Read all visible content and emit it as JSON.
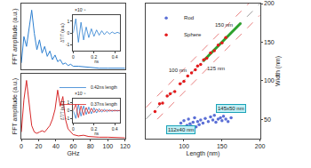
{
  "chart_data": [
    {
      "type": "line",
      "ylabel": "FFT amplitude (a.u.)",
      "tick_labels": false,
      "xlim": [
        0,
        120
      ],
      "ylim": [
        0,
        1
      ],
      "x": [
        0,
        3,
        6,
        9,
        12,
        15,
        18,
        21,
        24,
        27,
        30,
        33,
        36,
        39,
        42,
        45,
        48,
        51,
        54,
        57,
        60,
        66,
        72,
        78,
        84,
        90,
        100,
        110,
        120
      ],
      "series": [
        {
          "color": "#2c7fd0",
          "values": [
            0.1,
            0.5,
            0.35,
            0.6,
            0.9,
            0.55,
            0.3,
            0.45,
            0.25,
            0.35,
            0.2,
            0.28,
            0.15,
            0.22,
            0.12,
            0.15,
            0.08,
            0.1,
            0.06,
            0.08,
            0.05,
            0.05,
            0.04,
            0.03,
            0.03,
            0.02,
            0.02,
            0.02,
            0.02
          ]
        }
      ]
    },
    {
      "type": "line",
      "xlabel": "ns",
      "ylabel": "ΔT/T (a.u.)",
      "xlim": [
        0,
        0.45
      ],
      "xticks": [
        0,
        0.2,
        0.4
      ],
      "ylim": [
        -1.5,
        1.5
      ],
      "yticks": [
        -1,
        0,
        1
      ],
      "annotations": [
        {
          "text": "×10⁻⁵"
        }
      ],
      "x": [
        0,
        0.025,
        0.05,
        0.075,
        0.1,
        0.125,
        0.15,
        0.175,
        0.2,
        0.225,
        0.25,
        0.275,
        0.3,
        0.325,
        0.35,
        0.375,
        0.4,
        0.425,
        0.45
      ],
      "series": [
        {
          "color": "#2c7fd0",
          "values": [
            0,
            1.2,
            -0.8,
            0.9,
            -0.6,
            0.5,
            -0.4,
            0.35,
            -0.3,
            0.25,
            -0.2,
            0.18,
            -0.15,
            0.12,
            -0.1,
            0.08,
            -0.06,
            0.05,
            -0.04
          ]
        }
      ]
    },
    {
      "type": "line",
      "xlabel": "GHz",
      "ylabel": "FFT amplitude (a.u.)",
      "tick_labels": "x",
      "xlim": [
        0,
        120
      ],
      "xticks": [
        0,
        20,
        40,
        60,
        80,
        100,
        120
      ],
      "ylim": [
        0,
        1
      ],
      "x": [
        0,
        3,
        6,
        9,
        12,
        15,
        18,
        21,
        24,
        27,
        30,
        33,
        36,
        39,
        42,
        45,
        48,
        51,
        54,
        57,
        60,
        66,
        72,
        78,
        84,
        90,
        100,
        110,
        120
      ],
      "series": [
        {
          "color": "#d62728",
          "values": [
            0.1,
            0.6,
            0.9,
            0.5,
            0.2,
            0.1,
            0.08,
            0.1,
            0.12,
            0.1,
            0.15,
            0.2,
            0.3,
            0.45,
            0.75,
            0.5,
            0.65,
            0.3,
            0.15,
            0.1,
            0.06,
            0.04,
            0.05,
            0.03,
            0.02,
            0.02,
            0.02,
            0.01,
            0.01
          ]
        }
      ]
    },
    {
      "type": "line",
      "xlabel": "ns",
      "ylabel": "ΔT/T (a.u.)",
      "legend": "upper right",
      "xlim": [
        0,
        0.45
      ],
      "xticks": [
        0,
        0.2,
        0.4
      ],
      "ylim": [
        -1.5,
        1.5
      ],
      "yticks": [
        -1,
        0,
        1
      ],
      "annotations": [
        {
          "text": "×10⁻⁵"
        }
      ],
      "x": [
        0,
        0.025,
        0.05,
        0.075,
        0.1,
        0.125,
        0.15,
        0.175,
        0.2,
        0.225,
        0.25,
        0.275,
        0.3,
        0.325,
        0.35,
        0.375,
        0.4,
        0.425,
        0.45
      ],
      "series": [
        {
          "name": "0.42ns length",
          "color": "#2c7fd0",
          "values": [
            0,
            -1.0,
            0.8,
            -0.7,
            0.6,
            -0.5,
            0.45,
            -0.4,
            0.35,
            -0.3,
            0.25,
            -0.2,
            0.18,
            -0.15,
            0.12,
            -0.1,
            0.08,
            -0.06,
            0.05
          ]
        },
        {
          "name": "0.37ns length",
          "color": "#d62728",
          "values": [
            0,
            0.8,
            -0.9,
            0.6,
            -0.6,
            0.4,
            -0.4,
            0.3,
            -0.25,
            0.2,
            -0.15,
            0.12,
            -0.1,
            0.08,
            -0.06,
            0.05,
            -0.04,
            0.03,
            -0.02
          ]
        }
      ]
    },
    {
      "type": "scatter",
      "xlabel": "Length (nm)",
      "ylabel": "Width (nm)",
      "legend": "upper left",
      "xlim": [
        50,
        200
      ],
      "xticks": [
        100,
        150,
        200
      ],
      "ylim": [
        25,
        200
      ],
      "yticks": [
        50,
        100,
        150,
        200
      ],
      "annotations": [
        {
          "text": "100 nm",
          "x": 92,
          "y": 114
        },
        {
          "text": "125 nm",
          "x": 142,
          "y": 116
        },
        {
          "text": "150 nm",
          "x": 152,
          "y": 172
        },
        {
          "text": "112x40 nm",
          "x": 96,
          "y": 36
        },
        {
          "text": "145x50 nm",
          "x": 162,
          "y": 64
        }
      ],
      "series": [
        {
          "type": "line",
          "line_style": "dashed",
          "color": "#999999",
          "x": [
            50,
            200
          ],
          "values": [
            50,
            200
          ]
        },
        {
          "type": "line",
          "line_style": "dashed",
          "color": "#e88080",
          "x": [
            50,
            185
          ],
          "values": [
            65,
            200
          ]
        },
        {
          "type": "line",
          "line_style": "dashed",
          "color": "#e88080",
          "x": [
            65,
            200
          ],
          "values": [
            50,
            185
          ]
        },
        {
          "type": "line",
          "line_style": "solid",
          "color": "#2ca02c",
          "x": [
            125,
            175
          ],
          "values": [
            125,
            175
          ]
        },
        {
          "name": "Rod",
          "type": "scatter",
          "marker": "circle",
          "color": "#5b6fd6",
          "x": [
            96,
            100,
            104,
            106,
            108,
            110,
            112,
            114,
            116,
            118,
            120,
            122,
            125,
            128,
            132,
            135,
            138,
            140,
            142,
            145,
            148,
            150,
            152,
            155,
            158,
            162
          ],
          "values": [
            45,
            48,
            42,
            50,
            44,
            41,
            46,
            52,
            40,
            47,
            43,
            49,
            45,
            51,
            47,
            53,
            49,
            55,
            46,
            50,
            52,
            48,
            54,
            50,
            47,
            52
          ]
        },
        {
          "name": "Sphere",
          "type": "scatter",
          "marker": "circle",
          "color": "#e41a1c",
          "x": [
            62,
            68,
            72,
            78,
            82,
            88,
            95,
            100,
            105,
            110,
            115,
            118,
            122,
            126,
            130,
            135,
            140,
            145,
            150,
            155
          ],
          "values": [
            60,
            70,
            71,
            80,
            83,
            86,
            96,
            99,
            106,
            110,
            114,
            119,
            121,
            127,
            129,
            136,
            139,
            146,
            149,
            156
          ]
        }
      ]
    }
  ]
}
